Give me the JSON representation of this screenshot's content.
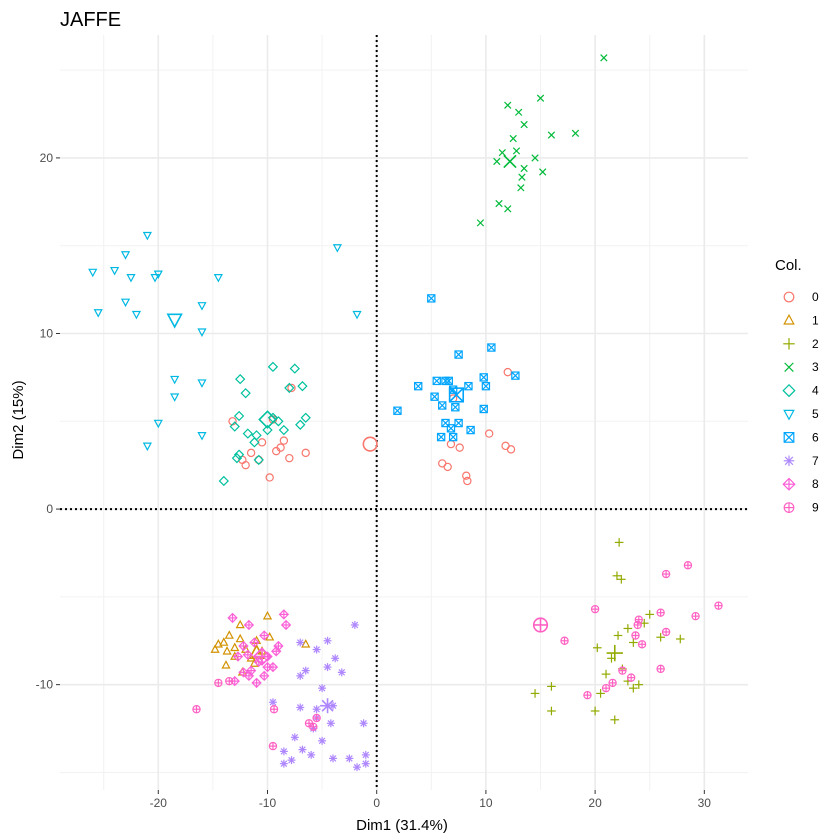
{
  "chart_data": {
    "type": "scatter",
    "title": "JAFFE",
    "xlabel": "Dim1 (31.4%)",
    "ylabel": "Dim2 (15%)",
    "xlim": [
      -29,
      34
    ],
    "ylim": [
      -16,
      27
    ],
    "xticks": [
      -20,
      -10,
      0,
      10,
      20,
      30
    ],
    "yticks": [
      -10,
      0,
      10,
      20
    ],
    "grid": true,
    "reference_lines": [
      {
        "axis": "x",
        "value": 0,
        "style": "dotted"
      },
      {
        "axis": "y",
        "value": 0,
        "style": "dotted"
      }
    ],
    "legend": {
      "title": "Col.",
      "position": "right"
    },
    "series": [
      {
        "name": "0",
        "color": "#F8766D",
        "shape": "circle-open",
        "centroid": [
          -0.6,
          3.7
        ],
        "points": [
          [
            -7.8,
            6.9
          ],
          [
            -13.2,
            5.0
          ],
          [
            -10.5,
            3.8
          ],
          [
            -11.5,
            3.2
          ],
          [
            -9.5,
            5.1
          ],
          [
            -9.2,
            3.3
          ],
          [
            -8.5,
            3.9
          ],
          [
            -12.3,
            2.8
          ],
          [
            -8.0,
            2.9
          ],
          [
            -9.8,
            1.8
          ],
          [
            -12.0,
            2.5
          ],
          [
            -6.5,
            3.2
          ],
          [
            -10.8,
            2.8
          ],
          [
            -8.8,
            3.5
          ],
          [
            7.0,
            6.3
          ],
          [
            6.5,
            2.4
          ],
          [
            6.0,
            2.6
          ],
          [
            6.8,
            3.7
          ],
          [
            7.6,
            3.5
          ],
          [
            8.2,
            1.9
          ],
          [
            8.3,
            1.6
          ],
          [
            10.3,
            4.3
          ],
          [
            11.8,
            3.6
          ],
          [
            12.3,
            3.4
          ],
          [
            12.0,
            7.8
          ]
        ]
      },
      {
        "name": "1",
        "color": "#D39200",
        "shape": "triangle-open",
        "centroid": [
          -11.0,
          -8.2
        ],
        "points": [
          [
            -13.5,
            -7.2
          ],
          [
            -14.5,
            -7.7
          ],
          [
            -13.0,
            -7.9
          ],
          [
            -12.0,
            -8.0
          ],
          [
            -11.0,
            -7.5
          ],
          [
            -10.0,
            -6.1
          ],
          [
            -9.8,
            -7.3
          ],
          [
            -11.5,
            -8.5
          ],
          [
            -13.8,
            -8.9
          ],
          [
            -12.5,
            -7.4
          ],
          [
            -14.8,
            -8.0
          ],
          [
            -13.0,
            -8.4
          ],
          [
            -12.3,
            -9.3
          ],
          [
            -11.2,
            -8.8
          ],
          [
            -10.5,
            -8.1
          ],
          [
            -13.7,
            -8.1
          ],
          [
            -6.5,
            -7.7
          ],
          [
            -12.5,
            -6.6
          ],
          [
            -14.0,
            -7.6
          ]
        ]
      },
      {
        "name": "2",
        "color": "#93AA00",
        "shape": "plus",
        "centroid": [
          21.8,
          -8.2
        ],
        "points": [
          [
            22.2,
            -1.9
          ],
          [
            22.0,
            -3.8
          ],
          [
            22.4,
            -4.0
          ],
          [
            23.0,
            -6.8
          ],
          [
            24.5,
            -6.5
          ],
          [
            25.0,
            -6.0
          ],
          [
            26.0,
            -7.3
          ],
          [
            27.8,
            -7.4
          ],
          [
            23.5,
            -7.6
          ],
          [
            22.1,
            -7.2
          ],
          [
            20.2,
            -7.9
          ],
          [
            21.5,
            -8.5
          ],
          [
            22.5,
            -9.1
          ],
          [
            23.0,
            -9.8
          ],
          [
            21.0,
            -9.4
          ],
          [
            24.0,
            -10.0
          ],
          [
            23.5,
            -10.2
          ],
          [
            16.0,
            -10.1
          ],
          [
            14.5,
            -10.5
          ],
          [
            16.0,
            -11.5
          ],
          [
            20.0,
            -11.5
          ],
          [
            21.8,
            -12.0
          ],
          [
            20.5,
            -10.5
          ]
        ]
      },
      {
        "name": "3",
        "color": "#00BA38",
        "shape": "x",
        "centroid": [
          12.2,
          19.8
        ],
        "points": [
          [
            20.8,
            25.7
          ],
          [
            12.0,
            23.0
          ],
          [
            15.0,
            23.4
          ],
          [
            13.0,
            22.6
          ],
          [
            13.5,
            21.9
          ],
          [
            16.0,
            21.3
          ],
          [
            18.2,
            21.4
          ],
          [
            12.5,
            21.1
          ],
          [
            12.8,
            20.4
          ],
          [
            11.5,
            20.3
          ],
          [
            13.5,
            19.4
          ],
          [
            15.2,
            19.2
          ],
          [
            11.0,
            19.8
          ],
          [
            13.3,
            18.9
          ],
          [
            14.5,
            20.0
          ],
          [
            11.2,
            17.4
          ],
          [
            12.0,
            17.1
          ],
          [
            13.2,
            18.3
          ],
          [
            9.5,
            16.3
          ]
        ]
      },
      {
        "name": "4",
        "color": "#00C19F",
        "shape": "diamond-open",
        "centroid": [
          -10.0,
          5.1
        ],
        "points": [
          [
            -12.5,
            7.4
          ],
          [
            -9.5,
            8.1
          ],
          [
            -7.5,
            8.0
          ],
          [
            -12.0,
            6.6
          ],
          [
            -8.0,
            6.9
          ],
          [
            -6.8,
            7.0
          ],
          [
            -12.6,
            5.3
          ],
          [
            -9.0,
            5.0
          ],
          [
            -7.0,
            4.8
          ],
          [
            -8.5,
            4.5
          ],
          [
            -6.5,
            5.2
          ],
          [
            -11.0,
            4.2
          ],
          [
            -10.0,
            4.5
          ],
          [
            -13.0,
            4.7
          ],
          [
            -11.8,
            4.3
          ],
          [
            -11.2,
            3.8
          ],
          [
            -12.6,
            3.1
          ],
          [
            -10.8,
            2.8
          ],
          [
            -12.8,
            2.9
          ],
          [
            -14.0,
            1.6
          ],
          [
            -9.5,
            5.2
          ]
        ]
      },
      {
        "name": "5",
        "color": "#00B9E3",
        "shape": "triangle-down-open",
        "centroid": [
          -18.5,
          10.8
        ],
        "points": [
          [
            -21.0,
            15.6
          ],
          [
            -23.0,
            14.5
          ],
          [
            -24.0,
            13.6
          ],
          [
            -26.0,
            13.5
          ],
          [
            -22.5,
            13.2
          ],
          [
            -20.0,
            13.4
          ],
          [
            -20.3,
            13.2
          ],
          [
            -14.5,
            13.2
          ],
          [
            -23.0,
            11.8
          ],
          [
            -25.5,
            11.2
          ],
          [
            -22.0,
            11.1
          ],
          [
            -16.0,
            11.6
          ],
          [
            -16.0,
            10.1
          ],
          [
            -18.5,
            7.4
          ],
          [
            -18.5,
            6.4
          ],
          [
            -16.0,
            7.2
          ],
          [
            -20.0,
            4.9
          ],
          [
            -16.0,
            4.2
          ],
          [
            -21.0,
            3.6
          ],
          [
            -3.6,
            14.9
          ],
          [
            -1.8,
            11.1
          ]
        ]
      },
      {
        "name": "6",
        "color": "#00A5FF",
        "shape": "square-cross",
        "centroid": [
          7.3,
          6.5
        ],
        "points": [
          [
            5.0,
            12.0
          ],
          [
            10.5,
            9.2
          ],
          [
            7.5,
            8.8
          ],
          [
            12.7,
            7.6
          ],
          [
            9.8,
            7.5
          ],
          [
            3.8,
            7.0
          ],
          [
            5.5,
            7.3
          ],
          [
            6.3,
            7.3
          ],
          [
            6.6,
            7.3
          ],
          [
            10.0,
            7.0
          ],
          [
            8.4,
            7.0
          ],
          [
            7.0,
            6.8
          ],
          [
            5.3,
            6.4
          ],
          [
            6.0,
            5.9
          ],
          [
            9.8,
            5.7
          ],
          [
            1.9,
            5.6
          ],
          [
            7.5,
            4.9
          ],
          [
            6.3,
            4.9
          ],
          [
            6.8,
            4.6
          ],
          [
            8.6,
            4.5
          ],
          [
            5.9,
            4.1
          ],
          [
            7.0,
            4.1
          ],
          [
            7.2,
            5.8
          ]
        ]
      },
      {
        "name": "7",
        "color": "#AE87FF",
        "shape": "asterisk",
        "centroid": [
          -4.5,
          -11.2
        ],
        "points": [
          [
            -2.0,
            -6.6
          ],
          [
            -4.5,
            -7.5
          ],
          [
            -7.0,
            -7.6
          ],
          [
            -5.5,
            -8.0
          ],
          [
            -3.8,
            -8.5
          ],
          [
            -6.5,
            -9.2
          ],
          [
            -4.5,
            -9.0
          ],
          [
            -3.2,
            -9.3
          ],
          [
            -7.0,
            -9.5
          ],
          [
            -5.0,
            -10.2
          ],
          [
            -9.5,
            -11.0
          ],
          [
            -7.0,
            -11.3
          ],
          [
            -5.5,
            -11.4
          ],
          [
            -4.0,
            -11.2
          ],
          [
            -5.5,
            -11.9
          ],
          [
            -4.2,
            -12.2
          ],
          [
            -1.2,
            -12.2
          ],
          [
            -5.8,
            -12.5
          ],
          [
            -7.5,
            -13.0
          ],
          [
            -5.0,
            -13.2
          ],
          [
            -8.5,
            -13.8
          ],
          [
            -6.0,
            -14.0
          ],
          [
            -7.8,
            -14.3
          ],
          [
            -8.5,
            -14.5
          ],
          [
            -4.0,
            -14.2
          ],
          [
            -1.0,
            -14.0
          ],
          [
            -2.5,
            -14.2
          ],
          [
            -1.0,
            -14.5
          ],
          [
            -1.8,
            -14.7
          ],
          [
            -6.8,
            -13.7
          ]
        ]
      },
      {
        "name": "8",
        "color": "#FB61D7",
        "shape": "diamond-plus",
        "centroid": [
          -10.5,
          -8.4
        ],
        "points": [
          [
            -13.2,
            -6.2
          ],
          [
            -8.5,
            -6.0
          ],
          [
            -8.3,
            -6.6
          ],
          [
            -11.7,
            -6.6
          ],
          [
            -10.3,
            -7.2
          ],
          [
            -11.2,
            -7.6
          ],
          [
            -12.2,
            -7.8
          ],
          [
            -9.0,
            -7.8
          ],
          [
            -9.2,
            -8.1
          ],
          [
            -11.8,
            -8.3
          ],
          [
            -12.7,
            -8.4
          ],
          [
            -10.8,
            -8.7
          ],
          [
            -10.0,
            -9.0
          ],
          [
            -11.5,
            -9.2
          ],
          [
            -12.2,
            -9.3
          ],
          [
            -10.3,
            -9.5
          ],
          [
            -9.5,
            -9.0
          ],
          [
            -11.0,
            -9.9
          ],
          [
            -13.0,
            -9.8
          ],
          [
            -11.7,
            -9.5
          ],
          [
            -10.0,
            -8.4
          ]
        ]
      },
      {
        "name": "9",
        "color": "#FF61C3",
        "shape": "circle-plus",
        "centroid": [
          15.0,
          -6.6
        ],
        "points": [
          [
            28.5,
            -3.2
          ],
          [
            26.5,
            -3.7
          ],
          [
            20.0,
            -5.7
          ],
          [
            31.3,
            -5.5
          ],
          [
            26.0,
            -5.9
          ],
          [
            29.2,
            -6.1
          ],
          [
            24.0,
            -6.3
          ],
          [
            23.9,
            -6.6
          ],
          [
            17.2,
            -7.5
          ],
          [
            26.5,
            -7.0
          ],
          [
            23.7,
            -7.2
          ],
          [
            24.3,
            -7.7
          ],
          [
            22.5,
            -9.2
          ],
          [
            23.3,
            -9.6
          ],
          [
            26.0,
            -9.1
          ],
          [
            21.6,
            -9.9
          ],
          [
            21.0,
            -10.2
          ],
          [
            19.3,
            -10.6
          ],
          [
            -13.5,
            -9.8
          ],
          [
            -14.5,
            -9.9
          ],
          [
            -16.5,
            -11.4
          ],
          [
            -9.4,
            -11.4
          ],
          [
            -5.5,
            -11.9
          ],
          [
            -6.2,
            -12.2
          ],
          [
            -5.8,
            -12.4
          ],
          [
            -9.5,
            -13.5
          ]
        ]
      }
    ]
  }
}
